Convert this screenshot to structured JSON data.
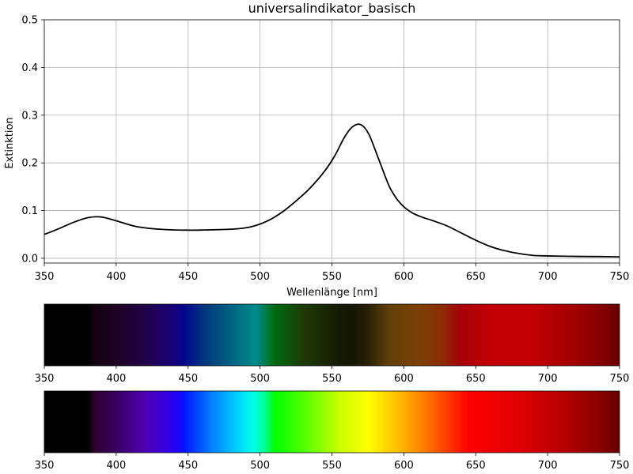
{
  "chart_data": [
    {
      "type": "line",
      "title": "universalindikator_basisch",
      "xlabel": "Wellenlänge [nm]",
      "ylabel": "Extinktion",
      "xlim": [
        350,
        750
      ],
      "ylim": [
        -0.01,
        0.5
      ],
      "xticks": [
        "350",
        "400",
        "450",
        "500",
        "550",
        "600",
        "650",
        "700",
        "750"
      ],
      "yticks": [
        "0.0",
        "0.1",
        "0.2",
        "0.3",
        "0.4",
        "0.5"
      ],
      "grid": true,
      "line_color": "#000000",
      "series": [
        {
          "x": [
            350,
            360,
            370,
            380,
            388,
            395,
            405,
            415,
            430,
            450,
            470,
            485,
            495,
            505,
            515,
            525,
            535,
            545,
            552,
            558,
            563,
            568,
            572,
            576,
            580,
            585,
            590,
            595,
            600,
            606,
            612,
            620,
            630,
            640,
            650,
            660,
            670,
            680,
            690,
            700,
            720,
            740,
            750
          ],
          "y": [
            0.05,
            0.062,
            0.075,
            0.085,
            0.087,
            0.083,
            0.074,
            0.066,
            0.061,
            0.059,
            0.06,
            0.062,
            0.067,
            0.078,
            0.096,
            0.12,
            0.148,
            0.183,
            0.215,
            0.25,
            0.272,
            0.281,
            0.276,
            0.258,
            0.228,
            0.188,
            0.15,
            0.125,
            0.108,
            0.095,
            0.087,
            0.079,
            0.068,
            0.053,
            0.038,
            0.025,
            0.016,
            0.01,
            0.006,
            0.005,
            0.004,
            0.0035,
            0.003
          ]
        }
      ]
    },
    {
      "type": "heatmap",
      "xlim": [
        350,
        750
      ],
      "xticks": [
        "350",
        "400",
        "450",
        "500",
        "550",
        "600",
        "650",
        "700",
        "750"
      ],
      "colorbar": [
        {
          "x": 350,
          "color": "#000000"
        },
        {
          "x": 380,
          "color": "#000000"
        },
        {
          "x": 385,
          "color": "#150010"
        },
        {
          "x": 400,
          "color": "#1e0025"
        },
        {
          "x": 420,
          "color": "#22004a"
        },
        {
          "x": 440,
          "color": "#16007a"
        },
        {
          "x": 447,
          "color": "#00068a"
        },
        {
          "x": 460,
          "color": "#00347e"
        },
        {
          "x": 480,
          "color": "#006480"
        },
        {
          "x": 497,
          "color": "#008a8c"
        },
        {
          "x": 505,
          "color": "#007a3a"
        },
        {
          "x": 510,
          "color": "#006a10"
        },
        {
          "x": 530,
          "color": "#1f3a08"
        },
        {
          "x": 555,
          "color": "#141a02"
        },
        {
          "x": 565,
          "color": "#131602"
        },
        {
          "x": 575,
          "color": "#2a2005"
        },
        {
          "x": 590,
          "color": "#624008"
        },
        {
          "x": 610,
          "color": "#7c4004"
        },
        {
          "x": 625,
          "color": "#8a3002"
        },
        {
          "x": 640,
          "color": "#a80008"
        },
        {
          "x": 660,
          "color": "#c20004"
        },
        {
          "x": 690,
          "color": "#c20000"
        },
        {
          "x": 720,
          "color": "#a00000"
        },
        {
          "x": 740,
          "color": "#7e0000"
        },
        {
          "x": 750,
          "color": "#640000"
        }
      ]
    },
    {
      "type": "heatmap",
      "xlim": [
        350,
        750
      ],
      "xticks": [
        "350",
        "400",
        "450",
        "500",
        "550",
        "600",
        "650",
        "700",
        "750"
      ],
      "colorbar": [
        {
          "x": 350,
          "color": "#000000"
        },
        {
          "x": 380,
          "color": "#000000"
        },
        {
          "x": 385,
          "color": "#2e0030"
        },
        {
          "x": 400,
          "color": "#3a0060"
        },
        {
          "x": 420,
          "color": "#5000b4"
        },
        {
          "x": 440,
          "color": "#2800f2"
        },
        {
          "x": 447,
          "color": "#0014ff"
        },
        {
          "x": 465,
          "color": "#0078ff"
        },
        {
          "x": 482,
          "color": "#00c8ff"
        },
        {
          "x": 495,
          "color": "#00ffe8"
        },
        {
          "x": 503,
          "color": "#00ff90"
        },
        {
          "x": 510,
          "color": "#00ff00"
        },
        {
          "x": 530,
          "color": "#50ff00"
        },
        {
          "x": 555,
          "color": "#c8ff00"
        },
        {
          "x": 575,
          "color": "#ffff00"
        },
        {
          "x": 595,
          "color": "#ffc000"
        },
        {
          "x": 615,
          "color": "#ff7800"
        },
        {
          "x": 635,
          "color": "#ff2800"
        },
        {
          "x": 645,
          "color": "#ff0000"
        },
        {
          "x": 680,
          "color": "#e00000"
        },
        {
          "x": 710,
          "color": "#b80000"
        },
        {
          "x": 735,
          "color": "#8c0000"
        },
        {
          "x": 750,
          "color": "#640000"
        }
      ]
    }
  ]
}
